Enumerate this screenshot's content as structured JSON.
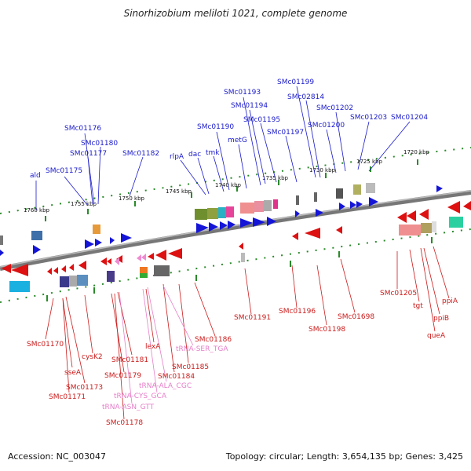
{
  "title": "Sinorhizobium meliloti 1021, complete genome",
  "footer": {
    "accession": "Accession: NC_003047",
    "topology": "Topology: circular; Length: 3,654,135 bp; Genes: 3,425"
  },
  "colors": {
    "forward": "#1a1acc",
    "reverse": "#cc1a1a",
    "rna": "#e67ec9",
    "tick": "#2a8a2a",
    "backbone": "#888888"
  },
  "scale_labels": [
    "1760 kbp",
    "1755 kbp",
    "1750 kbp",
    "1745 kbp",
    "1740 kbp",
    "1735 kbp",
    "1730 kbp",
    "1725 kbp",
    "1720 kbp"
  ],
  "forward_labels": [
    "ald",
    "SMc01175",
    "SMc01176",
    "SMc01180",
    "SMc01177",
    "SMc01182",
    "rlpA",
    "dac",
    "tmk",
    "SMc01190",
    "metG",
    "SMc01193",
    "SMc01194",
    "SMc01195",
    "SMc01197",
    "SMc01199",
    "SMc02814",
    "SMc01200",
    "SMc01202",
    "SMc01203",
    "SMc01204"
  ],
  "reverse_labels": [
    "SMc01170",
    "sseA",
    "SMc01173",
    "SMc01171",
    "cysK2",
    "SMc01181",
    "SMc01179",
    "SMc01178",
    "lexA",
    "SMc01184",
    "SMc01185",
    "SMc01186",
    "SMc01191",
    "SMc01196",
    "SMc01198",
    "SMc01698",
    "SMc01205",
    "tgt",
    "ppiB",
    "queA",
    "ppiA"
  ],
  "rna_labels": [
    "tRNA-SER_TGA",
    "tRNA-ALA_CGC",
    "tRNA-CYS_GCA",
    "tRNA-ASN_GTT"
  ]
}
